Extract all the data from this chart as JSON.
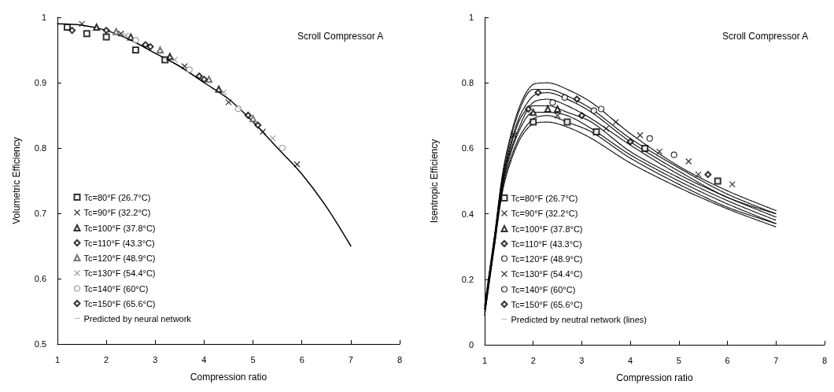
{
  "chart_data": [
    {
      "type": "scatter",
      "xlabel": "Compression ratio",
      "ylabel": "Volumetric Efficiency",
      "annotations": [
        "Scroll Compressor A"
      ],
      "xlim": [
        1,
        8
      ],
      "xticks": [
        1,
        2,
        3,
        4,
        5,
        6,
        7,
        8
      ],
      "ylim": [
        0.5,
        1
      ],
      "yticks": [
        0.5,
        0.6,
        0.7,
        0.8,
        0.9,
        1
      ],
      "grid": false,
      "legend": "bottom left",
      "series": [
        {
          "name": "Tc=80°F (26.7°C)",
          "color": "#000000",
          "marker": "square",
          "x": [
            1.2,
            1.6,
            2.0,
            2.6,
            3.2
          ],
          "values": [
            0.985,
            0.975,
            0.97,
            0.95,
            0.935
          ]
        },
        {
          "name": "Tc=90°F (32.2°C)",
          "color": "#000000",
          "marker": "cross",
          "x": [
            1.5,
            2.3,
            3.6,
            4.5,
            5.2,
            5.9
          ],
          "values": [
            0.99,
            0.975,
            0.925,
            0.87,
            0.825,
            0.775
          ]
        },
        {
          "name": "Tc=100°F (37.8°C)",
          "color": "#000000",
          "marker": "triangle",
          "x": [
            1.8,
            2.5,
            3.3,
            4.3
          ],
          "values": [
            0.985,
            0.97,
            0.94,
            0.89
          ]
        },
        {
          "name": "Tc=110°F (43.3°C)",
          "color": "#000000",
          "marker": "diamond",
          "x": [
            2.0,
            2.9,
            3.9,
            4.9
          ],
          "values": [
            0.98,
            0.955,
            0.91,
            0.85
          ]
        },
        {
          "name": "Tc=120°F (48.9°C)",
          "color": "#555555",
          "marker": "triangle",
          "x": [
            2.2,
            3.1,
            4.1,
            5.0
          ],
          "values": [
            0.978,
            0.95,
            0.905,
            0.845
          ]
        },
        {
          "name": "Tc=130°F (54.4°C)",
          "color": "#888888",
          "marker": "cross",
          "x": [
            2.4,
            3.4,
            4.4,
            5.4
          ],
          "values": [
            0.972,
            0.935,
            0.885,
            0.815
          ]
        },
        {
          "name": "Tc=140°F (60°C)",
          "color": "#888888",
          "marker": "circle",
          "x": [
            2.6,
            3.7,
            4.7,
            5.6
          ],
          "values": [
            0.965,
            0.92,
            0.86,
            0.8
          ]
        },
        {
          "name": "Tc=150°F (65.6°C)",
          "color": "#000000",
          "marker": "diamond",
          "x": [
            1.3,
            2.8,
            4.0,
            5.1
          ],
          "values": [
            0.98,
            0.958,
            0.905,
            0.835
          ]
        },
        {
          "name": "Predicted by neural network",
          "type": "line",
          "color": "#000000",
          "marker": "none",
          "line_style": "solid",
          "x": [
            1,
            1.5,
            2,
            2.5,
            3,
            3.5,
            4,
            4.5,
            5,
            5.5,
            6,
            6.5,
            7
          ],
          "values": [
            0.99,
            0.988,
            0.98,
            0.965,
            0.945,
            0.925,
            0.9,
            0.875,
            0.84,
            0.8,
            0.76,
            0.71,
            0.65
          ]
        }
      ]
    },
    {
      "type": "scatter",
      "xlabel": "Compression ratio",
      "ylabel": "Isentropic Efficiency",
      "annotations": [
        "Scroll Compressor A"
      ],
      "xlim": [
        1,
        8
      ],
      "xticks": [
        1,
        2,
        3,
        4,
        5,
        6,
        7,
        8
      ],
      "ylim": [
        0,
        1
      ],
      "yticks": [
        0,
        0.2,
        0.4,
        0.6,
        0.8,
        1
      ],
      "grid": false,
      "legend": "bottom left",
      "series": [
        {
          "name": "Tc=80°F (26.7°C)",
          "color": "#000000",
          "marker": "square",
          "x": [
            2.0,
            2.7,
            3.3,
            4.3,
            5.8
          ],
          "values": [
            0.68,
            0.68,
            0.65,
            0.6,
            0.5
          ]
        },
        {
          "name": "Tc=90°F (32.2°C)",
          "color": "#000000",
          "marker": "cross",
          "x": [
            1.6,
            2.5,
            3.5,
            4.6,
            5.4
          ],
          "values": [
            0.64,
            0.7,
            0.66,
            0.59,
            0.52
          ]
        },
        {
          "name": "Tc=100°F (37.8°C)",
          "color": "#000000",
          "marker": "triangle",
          "x": [
            2.0,
            2.3,
            2.5
          ],
          "values": [
            0.71,
            0.72,
            0.72
          ]
        },
        {
          "name": "Tc=110°F (43.3°C)",
          "color": "#000000",
          "marker": "diamond",
          "x": [
            1.9,
            3.0,
            4.0
          ],
          "values": [
            0.72,
            0.7,
            0.62
          ]
        },
        {
          "name": "Tc=120°F (48.9°C)",
          "color": "#000000",
          "marker": "circle",
          "x": [
            2.4,
            3.25,
            4.4
          ],
          "values": [
            0.74,
            0.715,
            0.63
          ]
        },
        {
          "name": "Tc=130°F (54.4°C)",
          "color": "#000000",
          "marker": "cross",
          "x": [
            3.7,
            4.2,
            5.2,
            6.1
          ],
          "values": [
            0.68,
            0.64,
            0.56,
            0.49
          ]
        },
        {
          "name": "Tc=140°F (60°C)",
          "color": "#000000",
          "marker": "circle",
          "x": [
            2.65,
            3.4,
            4.9
          ],
          "values": [
            0.755,
            0.72,
            0.58
          ]
        },
        {
          "name": "Tc=150°F (65.6°C)",
          "color": "#000000",
          "marker": "diamond",
          "x": [
            2.1,
            2.9,
            5.6
          ],
          "values": [
            0.77,
            0.75,
            0.52
          ]
        },
        {
          "name": "Predicted by neutral network (lines)",
          "type": "line",
          "color": "#000000",
          "marker": "none",
          "line_style": "dotted",
          "x": [
            1,
            1.2,
            1.4,
            1.7,
            2,
            2.3,
            2.7,
            3.2,
            4,
            5,
            6,
            7
          ],
          "values": [
            0.09,
            0.3,
            0.49,
            0.62,
            0.675,
            0.68,
            0.665,
            0.63,
            0.555,
            0.48,
            0.415,
            0.36
          ]
        },
        {
          "type": "line",
          "color": "#000000",
          "marker": "none",
          "line_style": "dotted",
          "x": [
            1,
            1.2,
            1.4,
            1.7,
            2,
            2.3,
            2.7,
            3.2,
            4,
            5,
            6,
            7
          ],
          "values": [
            0.09,
            0.3,
            0.5,
            0.63,
            0.69,
            0.7,
            0.68,
            0.65,
            0.57,
            0.49,
            0.42,
            0.37
          ]
        },
        {
          "type": "line",
          "color": "#000000",
          "marker": "none",
          "line_style": "dotted",
          "x": [
            1,
            1.2,
            1.4,
            1.7,
            2,
            2.3,
            2.7,
            3.2,
            4,
            5,
            6,
            7
          ],
          "values": [
            0.1,
            0.31,
            0.51,
            0.65,
            0.71,
            0.71,
            0.7,
            0.66,
            0.58,
            0.5,
            0.43,
            0.37
          ]
        },
        {
          "type": "line",
          "color": "#000000",
          "marker": "none",
          "line_style": "dotted",
          "x": [
            1,
            1.2,
            1.4,
            1.7,
            2,
            2.3,
            2.7,
            3.2,
            4,
            5,
            6,
            7
          ],
          "values": [
            0.11,
            0.31,
            0.52,
            0.66,
            0.73,
            0.73,
            0.71,
            0.68,
            0.59,
            0.51,
            0.44,
            0.38
          ]
        },
        {
          "type": "line",
          "color": "#000000",
          "marker": "none",
          "line_style": "dotted",
          "x": [
            1,
            1.2,
            1.4,
            1.7,
            2,
            2.3,
            2.7,
            3.2,
            4,
            5,
            6,
            7
          ],
          "values": [
            0.11,
            0.32,
            0.52,
            0.68,
            0.74,
            0.75,
            0.73,
            0.69,
            0.61,
            0.52,
            0.45,
            0.39
          ]
        },
        {
          "type": "line",
          "color": "#000000",
          "marker": "none",
          "line_style": "dotted",
          "x": [
            1,
            1.2,
            1.4,
            1.7,
            2,
            2.3,
            2.7,
            3.2,
            4,
            5,
            6,
            7
          ],
          "values": [
            0.11,
            0.32,
            0.53,
            0.69,
            0.76,
            0.77,
            0.75,
            0.71,
            0.62,
            0.53,
            0.45,
            0.4
          ]
        },
        {
          "type": "line",
          "color": "#000000",
          "marker": "none",
          "line_style": "dotted",
          "x": [
            1,
            1.2,
            1.4,
            1.7,
            2,
            2.3,
            2.7,
            3.2,
            4,
            5,
            6,
            7
          ],
          "values": [
            0.12,
            0.33,
            0.54,
            0.71,
            0.78,
            0.78,
            0.76,
            0.72,
            0.63,
            0.54,
            0.46,
            0.4
          ]
        },
        {
          "type": "line",
          "color": "#000000",
          "marker": "none",
          "line_style": "dotted",
          "x": [
            1,
            1.2,
            1.4,
            1.7,
            2,
            2.3,
            2.7,
            3.2,
            4,
            5,
            6,
            7
          ],
          "values": [
            0.12,
            0.33,
            0.55,
            0.72,
            0.795,
            0.8,
            0.78,
            0.74,
            0.645,
            0.545,
            0.47,
            0.41
          ]
        }
      ]
    }
  ]
}
